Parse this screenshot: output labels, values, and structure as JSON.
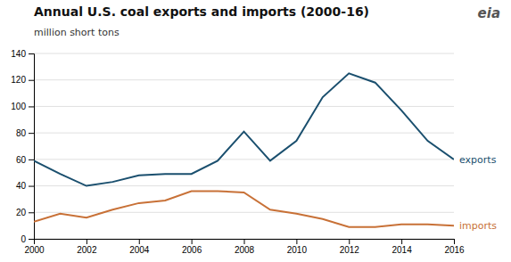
{
  "chart_data": {
    "type": "line",
    "title": "Annual U.S. coal exports and imports (2000-16)",
    "ylabel": "million short tons",
    "x": [
      2000,
      2001,
      2002,
      2003,
      2004,
      2005,
      2006,
      2007,
      2008,
      2009,
      2010,
      2011,
      2012,
      2013,
      2014,
      2015,
      2016
    ],
    "series": [
      {
        "name": "exports",
        "color": "#1a4f6e",
        "values": [
          59,
          49,
          40,
          43,
          48,
          49,
          49,
          59,
          81,
          59,
          74,
          107,
          125,
          118,
          97,
          74,
          60
        ]
      },
      {
        "name": "imports",
        "color": "#c87137",
        "values": [
          13,
          19,
          16,
          22,
          27,
          29,
          36,
          36,
          35,
          22,
          19,
          15,
          9,
          9,
          11,
          11,
          10
        ]
      }
    ],
    "xlim": [
      2000,
      2016
    ],
    "ylim": [
      0,
      140
    ],
    "xticks": [
      2000,
      2002,
      2004,
      2006,
      2008,
      2010,
      2012,
      2014,
      2016
    ],
    "yticks": [
      0,
      20,
      40,
      60,
      80,
      100,
      120,
      140
    ],
    "grid": true,
    "annotations": [
      "eia"
    ]
  }
}
